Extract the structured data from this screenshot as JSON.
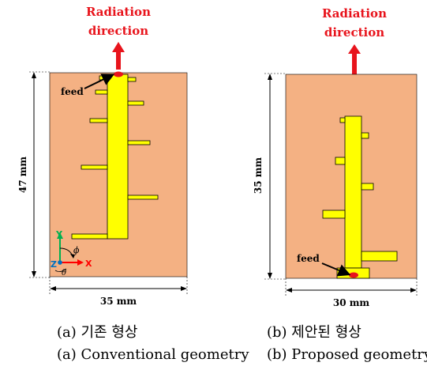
{
  "left": {
    "radiation_label_line1": "Radiation",
    "radiation_label_line2": "direction",
    "feed_label": "feed",
    "height_dim": "47 mm",
    "width_dim": "35 mm",
    "axis_y": "Y",
    "axis_z": "Z",
    "axis_x": "X",
    "axis_phi": "ϕ",
    "axis_theta": "θ",
    "caption_ko": "(a) 기존 형상",
    "caption_en": "(a) Conventional geometry"
  },
  "right": {
    "radiation_label_line1": "Radiation",
    "radiation_label_line2": "direction",
    "feed_label": "feed",
    "height_dim": "35 mm",
    "width_dim": "30 mm",
    "caption_ko": "(b) 제안된 형상",
    "caption_en": "(b) Proposed geometry"
  },
  "colors": {
    "substrate": "#f4b183",
    "conductor": "#ffff00",
    "arrow": "#e8141c",
    "axis_y": "#00b050",
    "axis_x": "#ff0000",
    "axis_z": "#0070c0"
  }
}
